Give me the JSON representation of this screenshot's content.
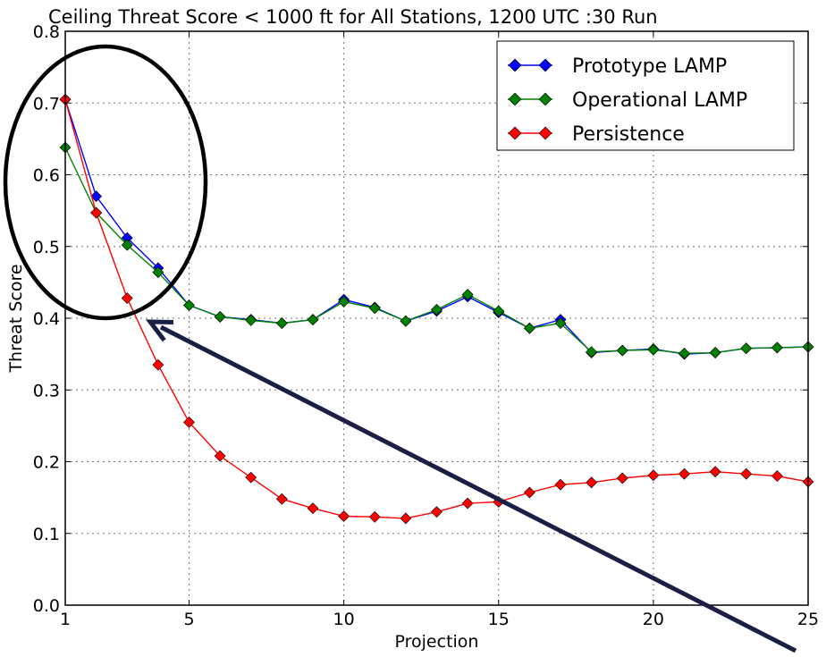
{
  "chart_data": {
    "type": "line",
    "title": "Ceiling Threat Score < 1000 ft for All Stations, 1200 UTC :30 Run",
    "xlabel": "Projection",
    "ylabel": "Threat Score",
    "xlim": [
      1,
      25
    ],
    "ylim": [
      0.0,
      0.8
    ],
    "xticks": [
      1,
      5,
      10,
      15,
      20,
      25
    ],
    "xtick_labels": [
      "1",
      "5",
      "10",
      "15",
      "20",
      "25"
    ],
    "yticks": [
      0.0,
      0.1,
      0.2,
      0.3,
      0.4,
      0.5,
      0.6,
      0.7,
      0.8
    ],
    "ytick_labels": [
      "0.0",
      "0.1",
      "0.2",
      "0.3",
      "0.4",
      "0.5",
      "0.6",
      "0.7",
      "0.8"
    ],
    "grid": true,
    "legend_position": "top-right",
    "x": [
      1,
      2,
      3,
      4,
      5,
      6,
      7,
      8,
      9,
      10,
      11,
      12,
      13,
      14,
      15,
      16,
      17,
      18,
      19,
      20,
      21,
      22,
      23,
      24,
      25
    ],
    "series": [
      {
        "name": "Prototype LAMP",
        "color": "#0000ff",
        "marker_color": "#0000ff",
        "values": [
          0.705,
          0.57,
          0.512,
          0.47,
          0.418,
          0.402,
          0.398,
          0.393,
          0.398,
          0.426,
          0.415,
          0.396,
          0.41,
          0.43,
          0.408,
          0.386,
          0.398,
          0.352,
          0.355,
          0.357,
          0.35,
          0.352,
          0.358,
          0.359,
          0.36
        ]
      },
      {
        "name": "Operational LAMP",
        "color": "#008000",
        "marker_color": "#008000",
        "values": [
          0.638,
          0.547,
          0.502,
          0.464,
          0.418,
          0.402,
          0.397,
          0.393,
          0.398,
          0.423,
          0.414,
          0.396,
          0.412,
          0.433,
          0.41,
          0.386,
          0.393,
          0.353,
          0.355,
          0.356,
          0.351,
          0.352,
          0.358,
          0.359,
          0.36
        ]
      },
      {
        "name": "Persistence",
        "color": "#ff0000",
        "marker_color": "#ff0000",
        "values": [
          0.705,
          0.547,
          0.428,
          0.335,
          0.255,
          0.208,
          0.178,
          0.148,
          0.135,
          0.124,
          0.123,
          0.121,
          0.13,
          0.142,
          0.144,
          0.157,
          0.168,
          0.171,
          0.177,
          0.181,
          0.183,
          0.186,
          0.183,
          0.18,
          0.172
        ]
      }
    ],
    "annotations": {
      "circle_color": "#000000",
      "arrow_color": "#1a1f45"
    }
  }
}
